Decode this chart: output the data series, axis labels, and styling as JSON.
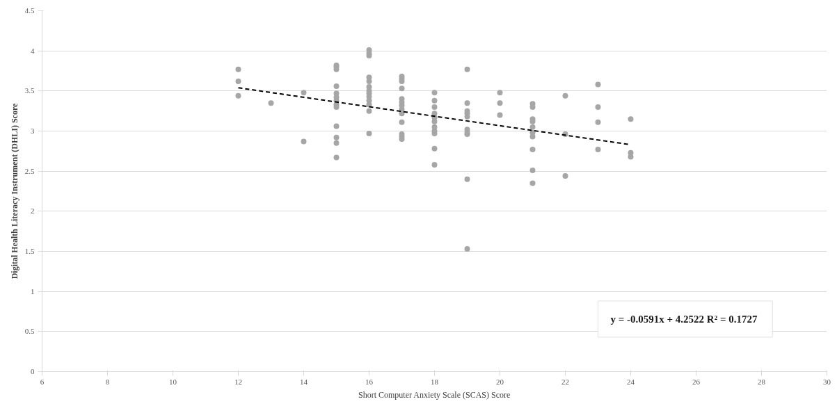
{
  "chart_data": {
    "type": "scatter",
    "xlabel": "Short Computer Anxiety Scale (SCAS) Score",
    "ylabel": "Digital Health Literacy Instrument (DHLI) Score",
    "xlim": [
      6,
      30
    ],
    "xticks": [
      6,
      8,
      10,
      12,
      14,
      16,
      18,
      20,
      22,
      24,
      26,
      28,
      30
    ],
    "ylim": [
      0,
      4.5
    ],
    "yticks": [
      0,
      0.5,
      1,
      1.5,
      2,
      2.5,
      3,
      3.5,
      4,
      4.5
    ],
    "grid": "y",
    "marker": "circle",
    "annotations": [
      "y = -0.0591x + 4.2522  R² = 0.1727"
    ],
    "series": [
      {
        "type": "scatter",
        "color": "#a6a6a6",
        "x": [
          12,
          12,
          12,
          13,
          14,
          14,
          15,
          15,
          15,
          15,
          15,
          15,
          15,
          15,
          15,
          15,
          15,
          15,
          15,
          16,
          16,
          16,
          16,
          16,
          16,
          16,
          16,
          16,
          16,
          16,
          16,
          16,
          17,
          17,
          17,
          17,
          17,
          17,
          17,
          17,
          17,
          17,
          17,
          17,
          17,
          18,
          18,
          18,
          18,
          18,
          18,
          18,
          18,
          18,
          18,
          18,
          19,
          19,
          19,
          19,
          19,
          19,
          19,
          19,
          19,
          19,
          20,
          20,
          20,
          21,
          21,
          21,
          21,
          21,
          21,
          21,
          21,
          21,
          21,
          22,
          22,
          22,
          23,
          23,
          23,
          23,
          24,
          24,
          24
        ],
        "values": [
          3.77,
          3.62,
          3.44,
          3.35,
          3.48,
          2.87,
          3.82,
          3.8,
          3.77,
          3.56,
          3.47,
          3.42,
          3.38,
          3.33,
          3.3,
          3.06,
          2.92,
          2.85,
          2.67,
          4.01,
          3.97,
          3.94,
          3.67,
          3.62,
          3.55,
          3.5,
          3.47,
          3.43,
          3.38,
          3.33,
          3.25,
          2.97,
          3.68,
          3.65,
          3.62,
          3.53,
          3.4,
          3.36,
          3.32,
          3.27,
          3.22,
          3.11,
          2.96,
          2.93,
          2.9,
          3.48,
          3.38,
          3.3,
          3.22,
          3.17,
          3.12,
          3.05,
          3.0,
          2.97,
          2.78,
          2.58,
          3.77,
          3.35,
          3.25,
          3.22,
          3.18,
          3.02,
          2.98,
          2.96,
          2.4,
          1.53,
          3.48,
          3.35,
          3.2,
          3.34,
          3.3,
          3.15,
          3.12,
          3.05,
          2.98,
          2.93,
          2.77,
          2.51,
          2.35,
          3.44,
          2.96,
          2.44,
          3.58,
          3.3,
          3.11,
          2.77,
          3.15,
          2.73,
          2.68
        ]
      },
      {
        "type": "line",
        "color": "#000000",
        "line_style": "dashed",
        "marker": "none",
        "x": [
          12,
          24
        ],
        "values": [
          3.54,
          2.83
        ]
      }
    ]
  }
}
